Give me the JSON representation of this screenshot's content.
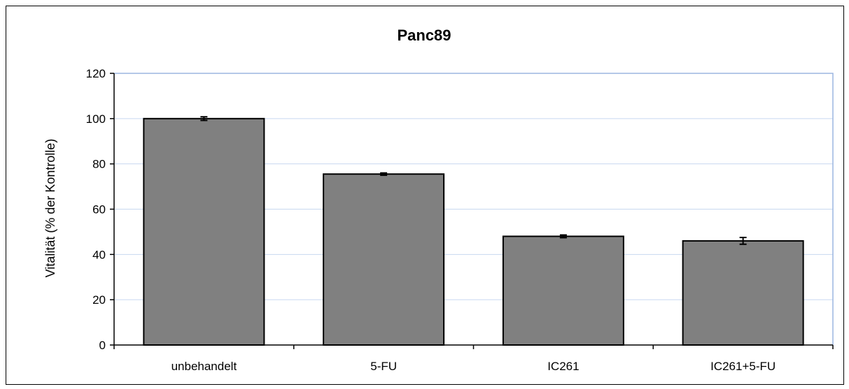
{
  "chart_data": {
    "type": "bar",
    "title": "Panc89",
    "xlabel": "",
    "ylabel": "Vitalität (% der Kontrolle)",
    "categories": [
      "unbehandelt",
      "5-FU",
      "IC261",
      "IC261+5-FU"
    ],
    "values": [
      100,
      75.5,
      48,
      46
    ],
    "errors": [
      0.8,
      0.5,
      0.6,
      1.5
    ],
    "ylim": [
      0,
      120
    ],
    "yticks": [
      0,
      20,
      40,
      60,
      80,
      100,
      120
    ],
    "grid": true,
    "legend": "none",
    "colors": {
      "bar_fill": "#808080",
      "bar_stroke": "#000000",
      "grid": "#c8d8f0",
      "plot_border": "#9bb5e0",
      "axis": "#000000"
    }
  }
}
